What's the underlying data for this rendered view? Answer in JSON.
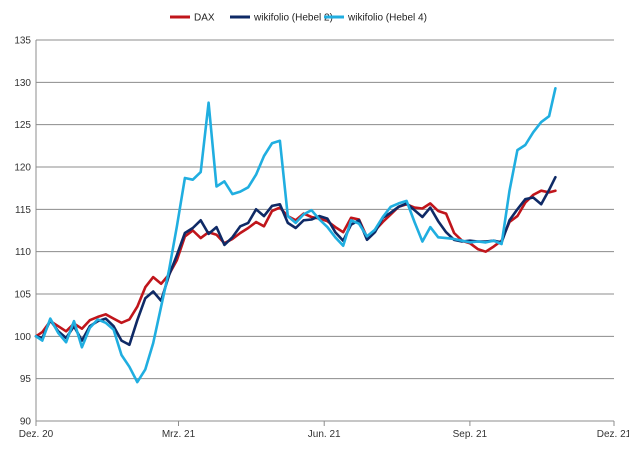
{
  "chart_data": {
    "type": "line",
    "title": "",
    "xlabel": "",
    "ylabel": "",
    "ylim": [
      90,
      135
    ],
    "yticks": [
      "90",
      "95",
      "100",
      "105",
      "110",
      "115",
      "120",
      "125",
      "130",
      "135"
    ],
    "xticks": [
      {
        "label": "Dez. 20",
        "x": "2020-12-01"
      },
      {
        "label": "Mrz. 21",
        "x": "2021-03-01"
      },
      {
        "label": "Jun. 21",
        "x": "2021-06-01"
      },
      {
        "label": "Sep. 21",
        "x": "2021-09-01"
      },
      {
        "label": "Dez. 21",
        "x": "2021-12-01"
      }
    ],
    "grid": "horizontal",
    "legend_position": "top",
    "x": [
      "2020-12-01",
      "2020-12-05",
      "2020-12-10",
      "2020-12-15",
      "2020-12-20",
      "2020-12-25",
      "2020-12-30",
      "2021-01-04",
      "2021-01-09",
      "2021-01-14",
      "2021-01-19",
      "2021-01-24",
      "2021-01-29",
      "2021-02-03",
      "2021-02-08",
      "2021-02-13",
      "2021-02-18",
      "2021-02-23",
      "2021-02-28",
      "2021-03-05",
      "2021-03-10",
      "2021-03-15",
      "2021-03-20",
      "2021-03-25",
      "2021-03-30",
      "2021-04-04",
      "2021-04-09",
      "2021-04-14",
      "2021-04-19",
      "2021-04-24",
      "2021-04-29",
      "2021-05-04",
      "2021-05-09",
      "2021-05-14",
      "2021-05-19",
      "2021-05-24",
      "2021-05-29",
      "2021-06-03",
      "2021-06-08",
      "2021-06-13",
      "2021-06-18",
      "2021-06-23",
      "2021-06-28",
      "2021-07-03",
      "2021-07-08",
      "2021-07-13",
      "2021-07-18",
      "2021-07-23",
      "2021-07-28",
      "2021-08-02",
      "2021-08-07",
      "2021-08-12",
      "2021-08-17",
      "2021-08-22",
      "2021-08-27",
      "2021-09-01",
      "2021-09-06",
      "2021-09-11",
      "2021-09-16",
      "2021-09-21",
      "2021-09-26",
      "2021-10-01",
      "2021-10-06",
      "2021-10-11",
      "2021-10-16",
      "2021-10-21",
      "2021-10-25"
    ],
    "series": [
      {
        "name": "DAX",
        "color": "#c0151b",
        "values": [
          100.0,
          100.5,
          101.8,
          101.2,
          100.6,
          101.5,
          100.9,
          101.9,
          102.3,
          102.6,
          102.1,
          101.6,
          102.0,
          103.5,
          105.8,
          107.0,
          106.2,
          107.3,
          109.0,
          111.8,
          112.5,
          111.6,
          112.3,
          112.0,
          111.0,
          111.5,
          112.2,
          112.8,
          113.5,
          113.0,
          114.8,
          115.2,
          114.2,
          113.7,
          114.5,
          114.1,
          113.9,
          113.6,
          112.9,
          112.3,
          114.0,
          113.8,
          111.7,
          112.5,
          113.5,
          114.4,
          115.3,
          115.6,
          115.2,
          115.1,
          115.7,
          114.8,
          114.5,
          112.2,
          111.3,
          111.0,
          110.3,
          110.0,
          110.6,
          111.3,
          113.5,
          114.2,
          115.8,
          116.7,
          117.2,
          117.0,
          117.2
        ],
        "dash": false
      },
      {
        "name": "wikifolio (Hebel 2)",
        "color": "#0f2a66",
        "values": [
          100.0,
          99.8,
          101.9,
          100.6,
          99.8,
          101.2,
          99.5,
          101.2,
          101.8,
          102.1,
          101.2,
          99.5,
          99.0,
          101.9,
          104.5,
          105.3,
          104.2,
          107.2,
          109.6,
          112.2,
          112.8,
          113.7,
          112.1,
          112.9,
          110.8,
          111.7,
          113.0,
          113.4,
          115.0,
          114.2,
          115.4,
          115.6,
          113.4,
          112.8,
          113.7,
          113.8,
          114.2,
          113.9,
          112.3,
          111.3,
          113.2,
          113.7,
          111.4,
          112.3,
          114.0,
          114.6,
          115.3,
          115.7,
          114.9,
          114.1,
          115.2,
          113.6,
          112.3,
          111.4,
          111.2,
          111.3,
          111.2,
          111.2,
          111.3,
          111.1,
          113.7,
          115.0,
          116.2,
          116.4,
          115.6,
          117.3,
          118.8
        ],
        "dash": false
      },
      {
        "name": "wikifolio (Hebel 4)",
        "color": "#20aee0",
        "values": [
          100.0,
          99.5,
          102.1,
          100.4,
          99.3,
          101.8,
          98.7,
          101.0,
          102.0,
          101.6,
          100.8,
          97.8,
          96.4,
          94.6,
          96.1,
          99.2,
          103.5,
          107.8,
          113.0,
          118.7,
          118.5,
          119.4,
          127.6,
          117.7,
          118.3,
          116.8,
          117.1,
          117.6,
          119.1,
          121.3,
          122.8,
          123.1,
          114.2,
          113.4,
          114.4,
          114.9,
          113.8,
          112.9,
          111.7,
          110.7,
          113.7,
          113.3,
          111.8,
          112.6,
          114.1,
          115.3,
          115.7,
          116.0,
          113.5,
          111.2,
          112.9,
          111.7,
          111.6,
          111.5,
          111.3,
          111.1,
          111.2,
          111.1,
          111.3,
          110.9,
          117.2,
          122.0,
          122.6,
          124.1,
          125.3,
          126.0,
          129.3
        ],
        "dash": false
      }
    ]
  }
}
